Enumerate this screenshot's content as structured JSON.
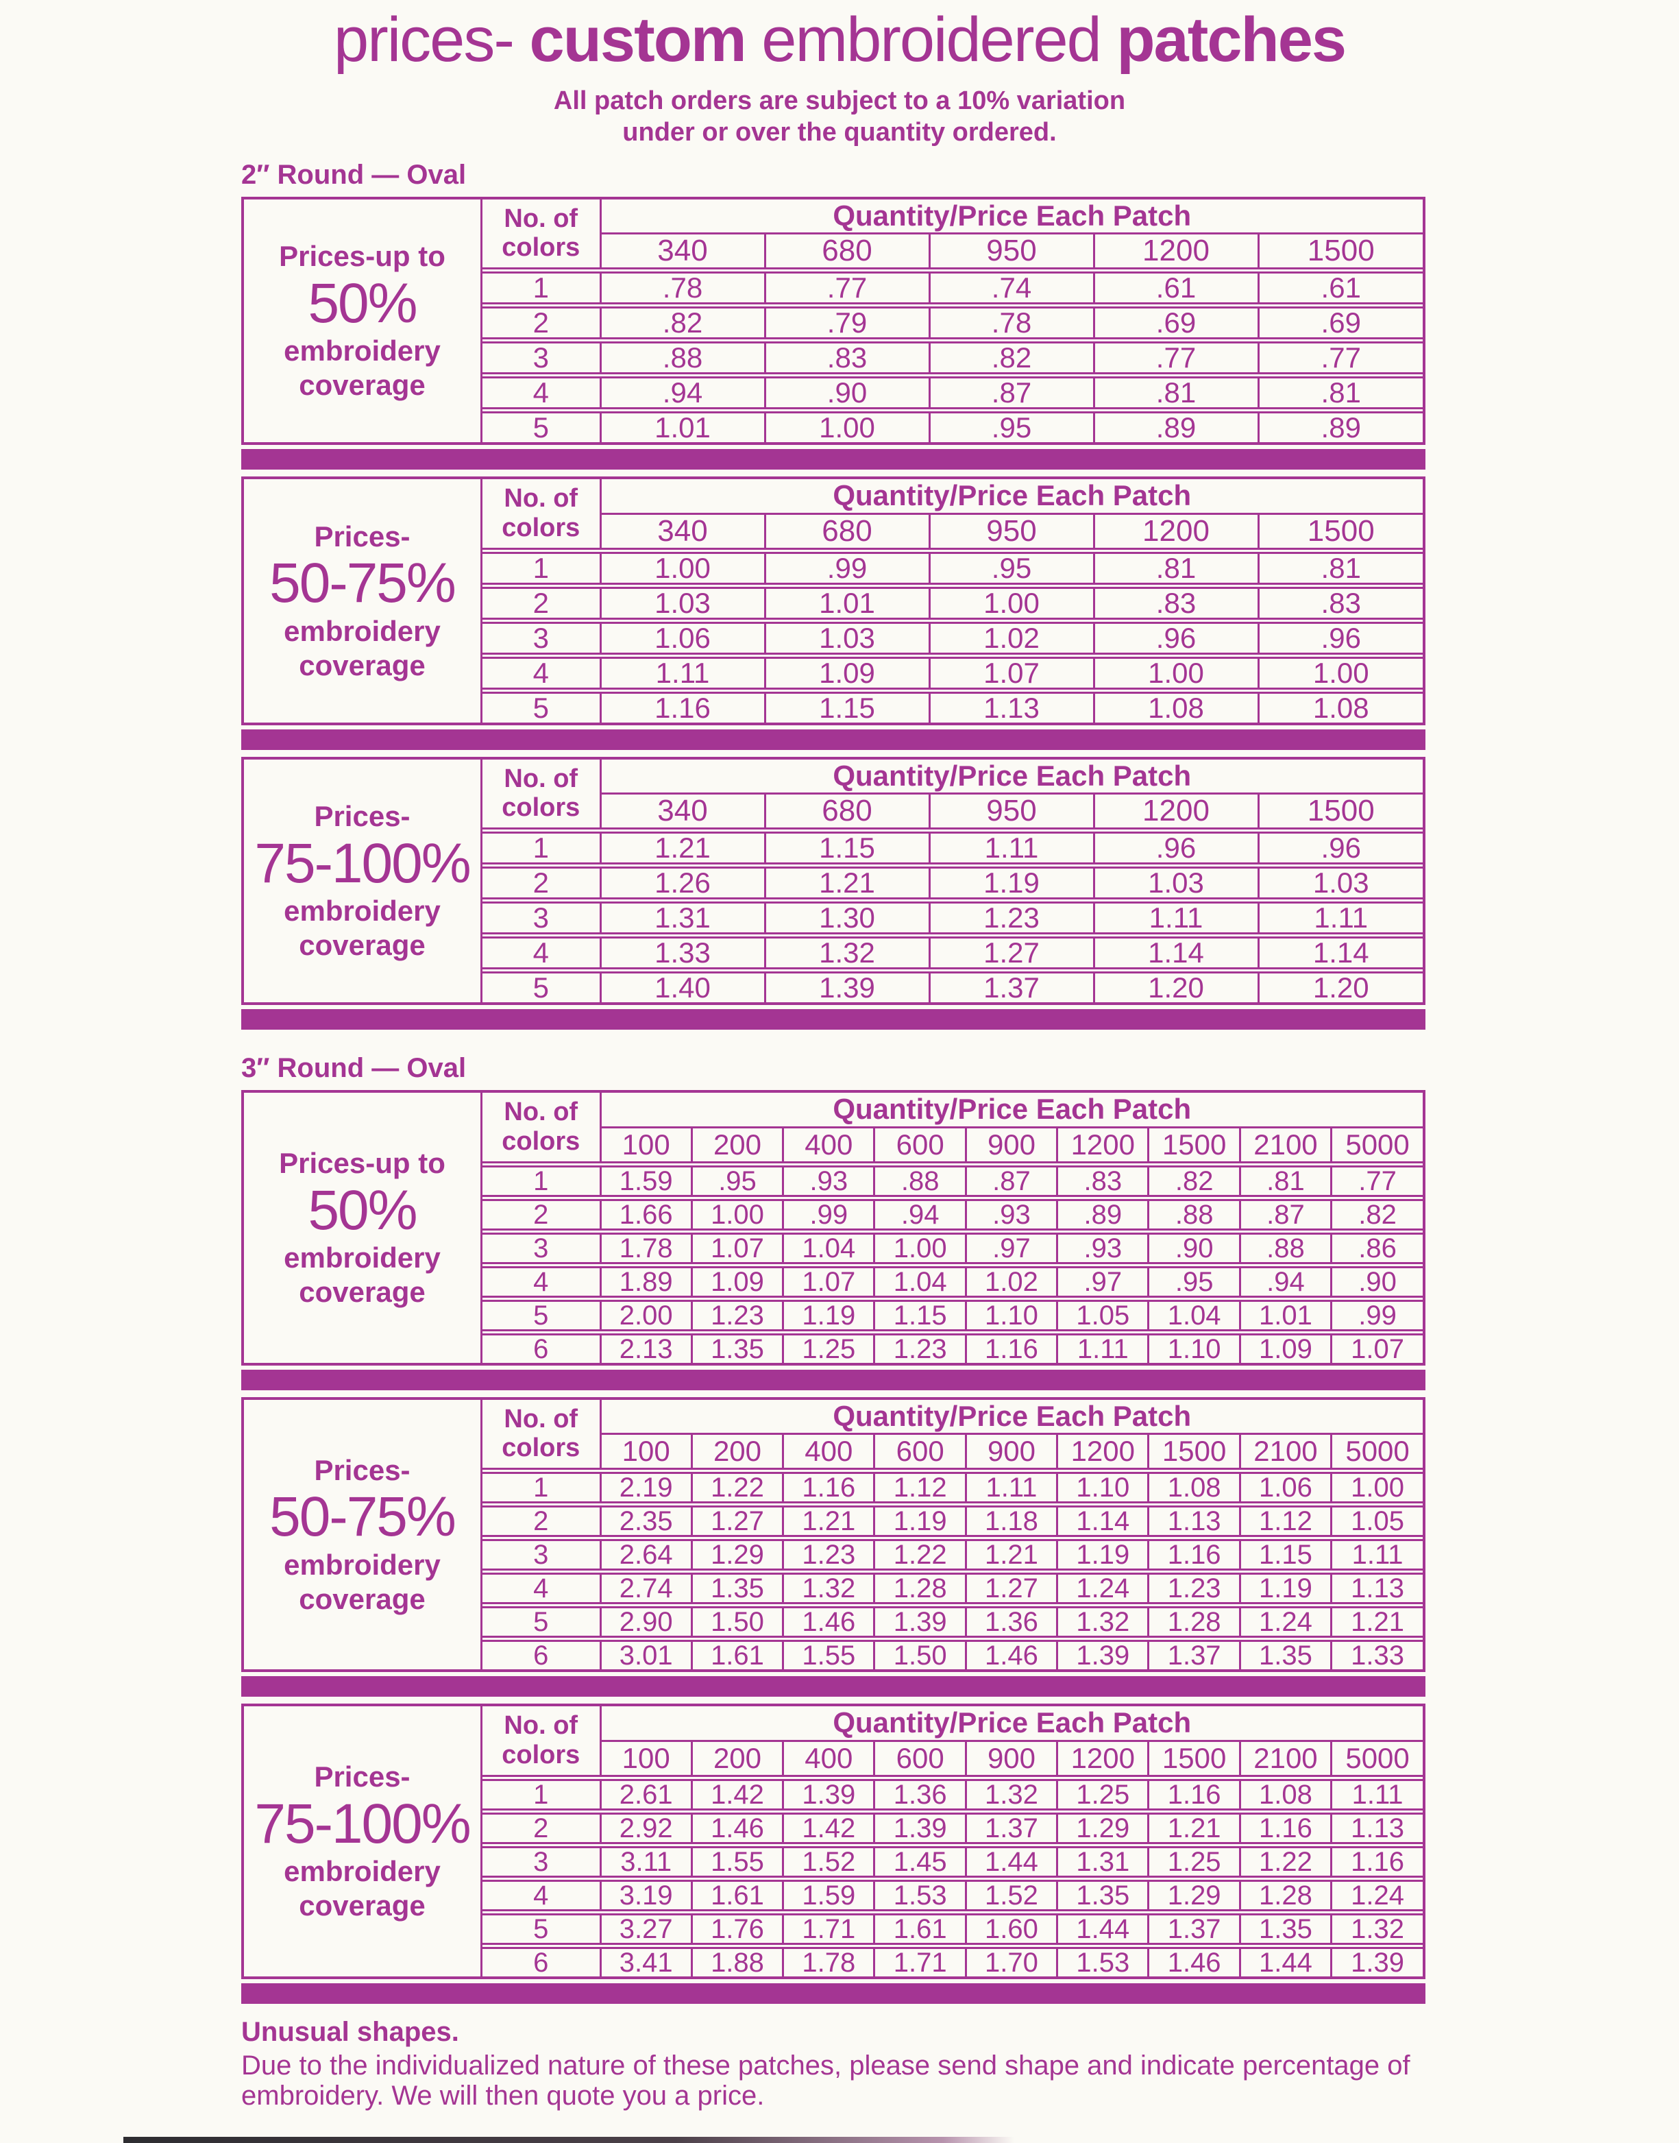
{
  "title": {
    "part1": "prices-",
    "part2": "custom",
    "part3": "embroidered",
    "part4": "patches"
  },
  "notice": {
    "line1": "All patch orders are subject to a 10% variation",
    "line2": "under or over the quantity ordered."
  },
  "labels": {
    "no_of": "No. of",
    "colors": "colors",
    "qty_header": "Quantity/Price Each Patch"
  },
  "sections": [
    {
      "heading": "2″ Round — Oval",
      "quantities": [
        "340",
        "680",
        "950",
        "1200",
        "1500"
      ],
      "tables": [
        {
          "label_top": "Prices-up to",
          "label_big": "50%",
          "label_mid": "embroidery",
          "label_bot": "coverage",
          "rows": [
            {
              "colors": "1",
              "prices": [
                ".78",
                ".77",
                ".74",
                ".61",
                ".61"
              ]
            },
            {
              "colors": "2",
              "prices": [
                ".82",
                ".79",
                ".78",
                ".69",
                ".69"
              ]
            },
            {
              "colors": "3",
              "prices": [
                ".88",
                ".83",
                ".82",
                ".77",
                ".77"
              ]
            },
            {
              "colors": "4",
              "prices": [
                ".94",
                ".90",
                ".87",
                ".81",
                ".81"
              ]
            },
            {
              "colors": "5",
              "prices": [
                "1.01",
                "1.00",
                ".95",
                ".89",
                ".89"
              ]
            }
          ]
        },
        {
          "label_top": "Prices-",
          "label_big": "50-75%",
          "label_mid": "embroidery",
          "label_bot": "coverage",
          "rows": [
            {
              "colors": "1",
              "prices": [
                "1.00",
                ".99",
                ".95",
                ".81",
                ".81"
              ]
            },
            {
              "colors": "2",
              "prices": [
                "1.03",
                "1.01",
                "1.00",
                ".83",
                ".83"
              ]
            },
            {
              "colors": "3",
              "prices": [
                "1.06",
                "1.03",
                "1.02",
                ".96",
                ".96"
              ]
            },
            {
              "colors": "4",
              "prices": [
                "1.11",
                "1.09",
                "1.07",
                "1.00",
                "1.00"
              ]
            },
            {
              "colors": "5",
              "prices": [
                "1.16",
                "1.15",
                "1.13",
                "1.08",
                "1.08"
              ]
            }
          ]
        },
        {
          "label_top": "Prices-",
          "label_big": "75-100%",
          "label_mid": "embroidery",
          "label_bot": "coverage",
          "rows": [
            {
              "colors": "1",
              "prices": [
                "1.21",
                "1.15",
                "1.11",
                ".96",
                ".96"
              ]
            },
            {
              "colors": "2",
              "prices": [
                "1.26",
                "1.21",
                "1.19",
                "1.03",
                "1.03"
              ]
            },
            {
              "colors": "3",
              "prices": [
                "1.31",
                "1.30",
                "1.23",
                "1.11",
                "1.11"
              ]
            },
            {
              "colors": "4",
              "prices": [
                "1.33",
                "1.32",
                "1.27",
                "1.14",
                "1.14"
              ]
            },
            {
              "colors": "5",
              "prices": [
                "1.40",
                "1.39",
                "1.37",
                "1.20",
                "1.20"
              ]
            }
          ]
        }
      ]
    },
    {
      "heading": "3″ Round — Oval",
      "quantities": [
        "100",
        "200",
        "400",
        "600",
        "900",
        "1200",
        "1500",
        "2100",
        "5000"
      ],
      "tables": [
        {
          "label_top": "Prices-up to",
          "label_big": "50%",
          "label_mid": "embroidery",
          "label_bot": "coverage",
          "rows": [
            {
              "colors": "1",
              "prices": [
                "1.59",
                ".95",
                ".93",
                ".88",
                ".87",
                ".83",
                ".82",
                ".81",
                ".77"
              ]
            },
            {
              "colors": "2",
              "prices": [
                "1.66",
                "1.00",
                ".99",
                ".94",
                ".93",
                ".89",
                ".88",
                ".87",
                ".82"
              ]
            },
            {
              "colors": "3",
              "prices": [
                "1.78",
                "1.07",
                "1.04",
                "1.00",
                ".97",
                ".93",
                ".90",
                ".88",
                ".86"
              ]
            },
            {
              "colors": "4",
              "prices": [
                "1.89",
                "1.09",
                "1.07",
                "1.04",
                "1.02",
                ".97",
                ".95",
                ".94",
                ".90"
              ]
            },
            {
              "colors": "5",
              "prices": [
                "2.00",
                "1.23",
                "1.19",
                "1.15",
                "1.10",
                "1.05",
                "1.04",
                "1.01",
                ".99"
              ]
            },
            {
              "colors": "6",
              "prices": [
                "2.13",
                "1.35",
                "1.25",
                "1.23",
                "1.16",
                "1.11",
                "1.10",
                "1.09",
                "1.07"
              ]
            }
          ]
        },
        {
          "label_top": "Prices-",
          "label_big": "50-75%",
          "label_mid": "embroidery",
          "label_bot": "coverage",
          "rows": [
            {
              "colors": "1",
              "prices": [
                "2.19",
                "1.22",
                "1.16",
                "1.12",
                "1.11",
                "1.10",
                "1.08",
                "1.06",
                "1.00"
              ]
            },
            {
              "colors": "2",
              "prices": [
                "2.35",
                "1.27",
                "1.21",
                "1.19",
                "1.18",
                "1.14",
                "1.13",
                "1.12",
                "1.05"
              ]
            },
            {
              "colors": "3",
              "prices": [
                "2.64",
                "1.29",
                "1.23",
                "1.22",
                "1.21",
                "1.19",
                "1.16",
                "1.15",
                "1.11"
              ]
            },
            {
              "colors": "4",
              "prices": [
                "2.74",
                "1.35",
                "1.32",
                "1.28",
                "1.27",
                "1.24",
                "1.23",
                "1.19",
                "1.13"
              ]
            },
            {
              "colors": "5",
              "prices": [
                "2.90",
                "1.50",
                "1.46",
                "1.39",
                "1.36",
                "1.32",
                "1.28",
                "1.24",
                "1.21"
              ]
            },
            {
              "colors": "6",
              "prices": [
                "3.01",
                "1.61",
                "1.55",
                "1.50",
                "1.46",
                "1.39",
                "1.37",
                "1.35",
                "1.33"
              ]
            }
          ]
        },
        {
          "label_top": "Prices-",
          "label_big": "75-100%",
          "label_mid": "embroidery",
          "label_bot": "coverage",
          "rows": [
            {
              "colors": "1",
              "prices": [
                "2.61",
                "1.42",
                "1.39",
                "1.36",
                "1.32",
                "1.25",
                "1.16",
                "1.08",
                "1.11"
              ]
            },
            {
              "colors": "2",
              "prices": [
                "2.92",
                "1.46",
                "1.42",
                "1.39",
                "1.37",
                "1.29",
                "1.21",
                "1.16",
                "1.13"
              ]
            },
            {
              "colors": "3",
              "prices": [
                "3.11",
                "1.55",
                "1.52",
                "1.45",
                "1.44",
                "1.31",
                "1.25",
                "1.22",
                "1.16"
              ]
            },
            {
              "colors": "4",
              "prices": [
                "3.19",
                "1.61",
                "1.59",
                "1.53",
                "1.52",
                "1.35",
                "1.29",
                "1.28",
                "1.24"
              ]
            },
            {
              "colors": "5",
              "prices": [
                "3.27",
                "1.76",
                "1.71",
                "1.61",
                "1.60",
                "1.44",
                "1.37",
                "1.35",
                "1.32"
              ]
            },
            {
              "colors": "6",
              "prices": [
                "3.41",
                "1.88",
                "1.78",
                "1.71",
                "1.70",
                "1.53",
                "1.46",
                "1.44",
                "1.39"
              ]
            }
          ]
        }
      ]
    }
  ],
  "footer": {
    "heading": "Unusual shapes.",
    "line1": "Due to the individualized nature of these patches, please send shape and indicate percentage of",
    "line2": "embroidery. We will then quote you a price."
  },
  "colors_meta": {
    "ink": "#a43593",
    "paper": "#fbfaf5"
  }
}
